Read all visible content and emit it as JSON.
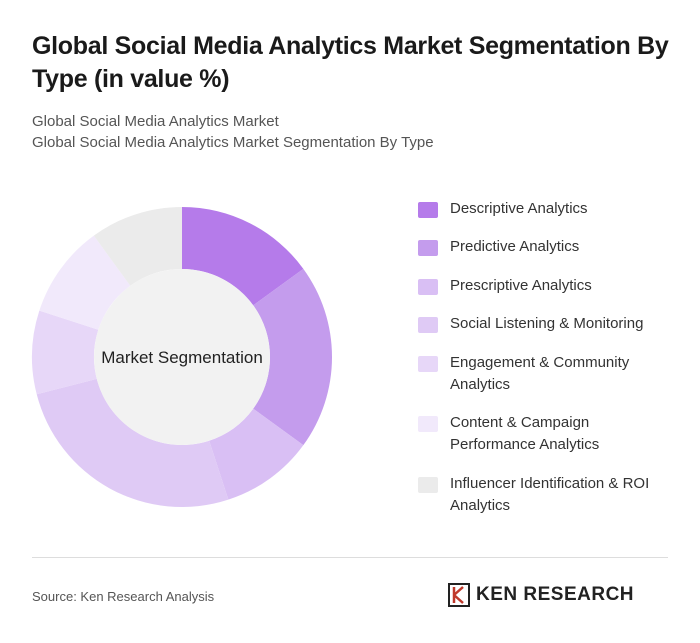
{
  "title": "Global Social Media Analytics Market Segmentation By Type (in value %)",
  "subtitle": [
    "Global Social Media Analytics Market",
    "Global Social Media Analytics Market Segmentation By Type"
  ],
  "chart_data": {
    "type": "donut",
    "center_label": "Market Segmentation",
    "categories": [
      "Descriptive Analytics",
      "Predictive Analytics",
      "Prescriptive Analytics",
      "Social Listening & Monitoring",
      "Engagement & Community Analytics",
      "Content & Campaign Performance Analytics",
      "Influencer Identification & ROI Analytics"
    ],
    "values": [
      15,
      20,
      10,
      26,
      9,
      10,
      10
    ],
    "colors": [
      "#b57bea",
      "#c49ced",
      "#d9bff4",
      "#dfcaf5",
      "#e7d7f8",
      "#f1e9fb",
      "#ebebeb"
    ]
  },
  "source": "Source: Ken Research Analysis",
  "logo": "KEN RESEARCH"
}
